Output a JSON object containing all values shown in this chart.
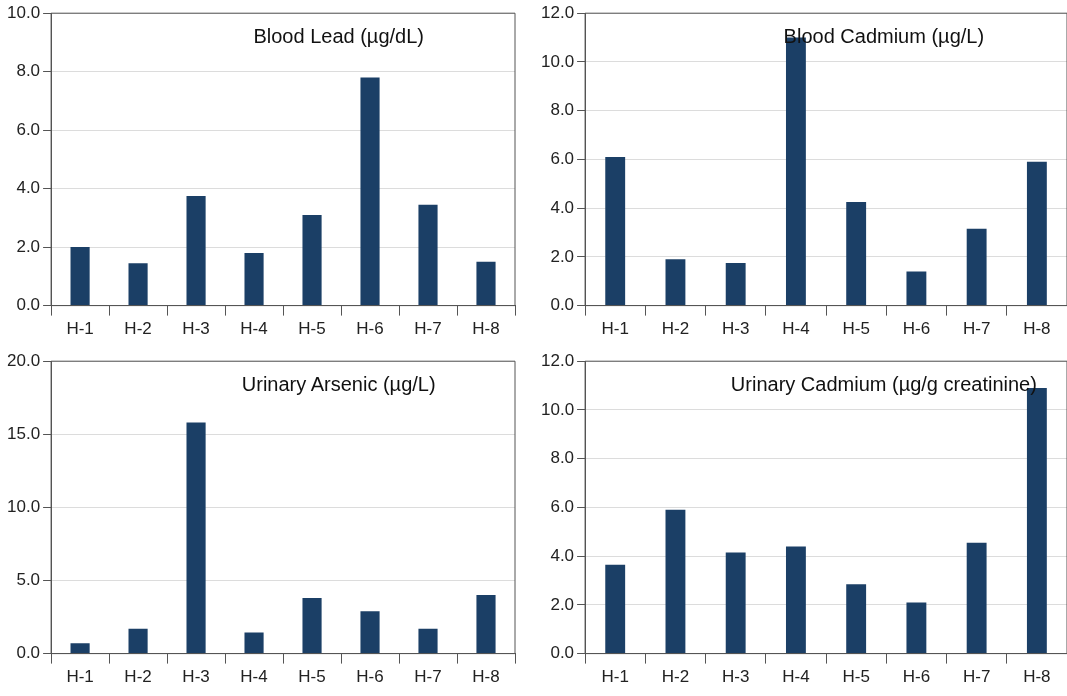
{
  "chart_data": [
    {
      "type": "bar",
      "title": "Blood Lead (µg/dL)",
      "categories": [
        "H-1",
        "H-2",
        "H-3",
        "H-4",
        "H-5",
        "H-6",
        "H-7",
        "H-8"
      ],
      "values": [
        2.0,
        1.45,
        3.75,
        1.8,
        3.1,
        7.8,
        3.45,
        1.5
      ],
      "color": "#1b3f66",
      "ylim": [
        0,
        10
      ],
      "yticks": [
        {
          "value": 0,
          "label": "0.0"
        },
        {
          "value": 2,
          "label": "2.0"
        },
        {
          "value": 4,
          "label": "4.0"
        },
        {
          "value": 6,
          "label": "6.0"
        },
        {
          "value": 8,
          "label": "8.0"
        },
        {
          "value": 10,
          "label": "10.0"
        }
      ],
      "grid": "y",
      "legend": false
    },
    {
      "type": "bar",
      "title": "Blood Cadmium (µg/L)",
      "categories": [
        "H-1",
        "H-2",
        "H-3",
        "H-4",
        "H-5",
        "H-6",
        "H-7",
        "H-8"
      ],
      "values": [
        6.1,
        1.9,
        1.75,
        11.0,
        4.25,
        1.4,
        3.15,
        5.9
      ],
      "color": "#1b3f66",
      "ylim": [
        0,
        12
      ],
      "yticks": [
        {
          "value": 0,
          "label": "0.0"
        },
        {
          "value": 2,
          "label": "2.0"
        },
        {
          "value": 4,
          "label": "4.0"
        },
        {
          "value": 6,
          "label": "6.0"
        },
        {
          "value": 8,
          "label": "8.0"
        },
        {
          "value": 10,
          "label": "10.0"
        },
        {
          "value": 12,
          "label": "12.0"
        }
      ],
      "grid": "y",
      "legend": false
    },
    {
      "type": "bar",
      "title": "Urinary Arsenic (µg/L)",
      "categories": [
        "H-1",
        "H-2",
        "H-3",
        "H-4",
        "H-5",
        "H-6",
        "H-7",
        "H-8"
      ],
      "values": [
        0.7,
        1.7,
        15.8,
        1.45,
        3.8,
        2.9,
        1.7,
        4.0
      ],
      "color": "#1b3f66",
      "ylim": [
        0,
        20
      ],
      "yticks": [
        {
          "value": 0,
          "label": "0.0"
        },
        {
          "value": 5,
          "label": "5.0"
        },
        {
          "value": 10,
          "label": "10.0"
        },
        {
          "value": 15,
          "label": "15.0"
        },
        {
          "value": 20,
          "label": "20.0"
        }
      ],
      "grid": "y",
      "legend": false
    },
    {
      "type": "bar",
      "title": "Urinary Cadmium (µg/g creatinine)",
      "categories": [
        "H-1",
        "H-2",
        "H-3",
        "H-4",
        "H-5",
        "H-6",
        "H-7",
        "H-8"
      ],
      "values": [
        3.65,
        5.9,
        4.15,
        4.4,
        2.85,
        2.1,
        4.55,
        10.9
      ],
      "color": "#1b3f66",
      "ylim": [
        0,
        12
      ],
      "yticks": [
        {
          "value": 0,
          "label": "0.0"
        },
        {
          "value": 2,
          "label": "2.0"
        },
        {
          "value": 4,
          "label": "4.0"
        },
        {
          "value": 6,
          "label": "6.0"
        },
        {
          "value": 8,
          "label": "8.0"
        },
        {
          "value": 10,
          "label": "10.0"
        },
        {
          "value": 12,
          "label": "12.0"
        }
      ],
      "grid": "y",
      "legend": false
    }
  ]
}
